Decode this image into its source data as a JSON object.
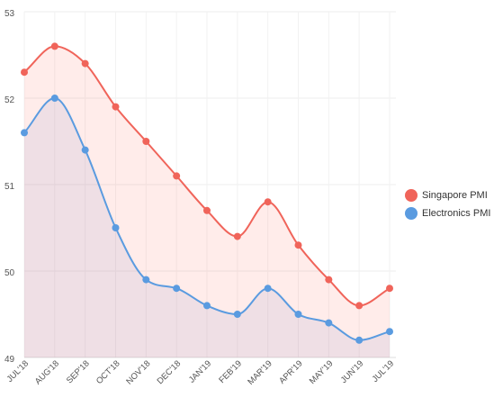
{
  "chart_data": {
    "type": "area",
    "categories": [
      "JUL'18",
      "AUG'18",
      "SEP'18",
      "OCT'18",
      "NOV'18",
      "DEC'18",
      "JAN'19",
      "FEB'19",
      "MAR'19",
      "APR'19",
      "MAY'19",
      "JUN'19",
      "JUL'19"
    ],
    "series": [
      {
        "name": "Singapore PMI",
        "color": "#f0645a",
        "values": [
          52.3,
          52.6,
          52.4,
          51.9,
          51.5,
          51.1,
          50.7,
          50.4,
          50.8,
          50.3,
          49.9,
          49.6,
          49.8
        ]
      },
      {
        "name": "Electronics PMI",
        "color": "#5a9be0",
        "values": [
          51.6,
          52.0,
          51.4,
          50.5,
          49.9,
          49.8,
          49.6,
          49.5,
          49.8,
          49.5,
          49.4,
          49.2,
          49.3
        ]
      }
    ],
    "y_ticks": [
      "53",
      "52",
      "51",
      "50",
      "49"
    ],
    "ylim": [
      49,
      53
    ],
    "grid": true,
    "legend_position": "right"
  }
}
